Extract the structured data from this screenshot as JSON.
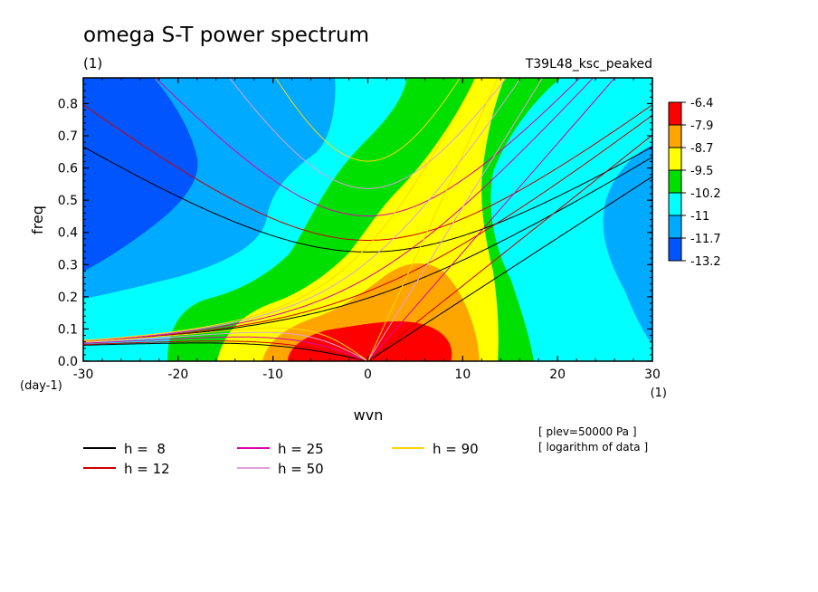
{
  "chart_data": {
    "type": "contour",
    "title": "omega S-T power spectrum",
    "subtitle_left": "(1)",
    "subtitle_right": "T39L48_ksc_peaked",
    "xlabel": "wvn",
    "ylabel": "freq",
    "x_unit_label": "(1)",
    "y_unit_label": "(day-1)",
    "xlim": [
      -30,
      30
    ],
    "ylim": [
      0,
      0.88
    ],
    "x_ticks": [
      -30,
      -20,
      -10,
      0,
      10,
      20,
      30
    ],
    "x_tick_labels": [
      "-30",
      "-20",
      "-10",
      "0",
      "10",
      "20",
      "30"
    ],
    "y_ticks": [
      0,
      0.1,
      0.2,
      0.3,
      0.4,
      0.5,
      0.6,
      0.7,
      0.8
    ],
    "y_tick_labels": [
      "0.0",
      "0.1",
      "0.2",
      "0.3",
      "0.4",
      "0.5",
      "0.6",
      "0.7",
      "0.8"
    ],
    "colorbar": {
      "levels": [
        "-6.4",
        "-7.9",
        "-8.7",
        "-9.5",
        "-10.2",
        "-11",
        "-11.7",
        "-13.2"
      ],
      "colors": [
        "#ff0000",
        "#ffa500",
        "#ffff00",
        "#00e000",
        "#00ffff",
        "#00aaff",
        "#0055ff"
      ]
    },
    "dispersion_curves": [
      {
        "name": "h =  8",
        "h": 8,
        "color": "#000000"
      },
      {
        "name": "h = 12",
        "h": 12,
        "color": "#cc0000"
      },
      {
        "name": "h = 25",
        "h": 25,
        "color": "#dd00aa"
      },
      {
        "name": "h = 50",
        "h": 50,
        "color": "#dda0dd"
      },
      {
        "name": "h = 90",
        "h": 90,
        "color": "#ffd700"
      }
    ],
    "annotations": [
      "[ plev=50000 Pa ]",
      "[ logarithm of data ]"
    ]
  }
}
